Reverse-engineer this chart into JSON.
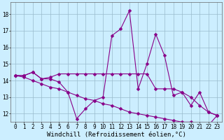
{
  "xlabel": "Windchill (Refroidissement éolien,°C)",
  "bg_color": "#cceeff",
  "grid_color": "#99bbcc",
  "line_color": "#880088",
  "x": [
    0,
    1,
    2,
    3,
    4,
    5,
    6,
    7,
    8,
    9,
    10,
    11,
    12,
    13,
    14,
    15,
    16,
    17,
    18,
    19,
    20,
    21,
    22,
    23
  ],
  "line1": [
    14.3,
    14.3,
    14.5,
    14.1,
    14.1,
    13.9,
    13.3,
    11.7,
    12.3,
    12.8,
    13.0,
    16.7,
    17.1,
    18.2,
    13.5,
    15.0,
    16.8,
    15.5,
    13.1,
    13.3,
    12.5,
    13.3,
    12.1,
    11.9
  ],
  "line2": [
    14.3,
    14.3,
    14.5,
    14.1,
    14.2,
    14.4,
    14.4,
    14.4,
    14.4,
    14.4,
    14.4,
    14.4,
    14.4,
    14.4,
    14.4,
    14.4,
    13.5,
    13.5,
    13.5,
    13.3,
    13.0,
    12.5,
    12.1,
    11.9
  ],
  "line3": [
    14.3,
    14.2,
    14.0,
    13.8,
    13.6,
    13.5,
    13.3,
    13.1,
    12.9,
    12.8,
    12.6,
    12.5,
    12.3,
    12.1,
    12.0,
    11.9,
    11.8,
    11.7,
    11.6,
    11.5,
    11.5,
    11.4,
    11.3,
    11.9
  ],
  "ylim": [
    11.5,
    18.7
  ],
  "xlim": [
    -0.5,
    23.5
  ],
  "yticks": [
    12,
    13,
    14,
    15,
    16,
    17,
    18
  ],
  "xticks": [
    0,
    1,
    2,
    3,
    4,
    5,
    6,
    7,
    8,
    9,
    10,
    11,
    12,
    13,
    14,
    15,
    16,
    17,
    18,
    19,
    20,
    21,
    22,
    23
  ],
  "markersize": 2.5,
  "linewidth": 0.8,
  "tick_fontsize": 5.5,
  "xlabel_fontsize": 6.5
}
